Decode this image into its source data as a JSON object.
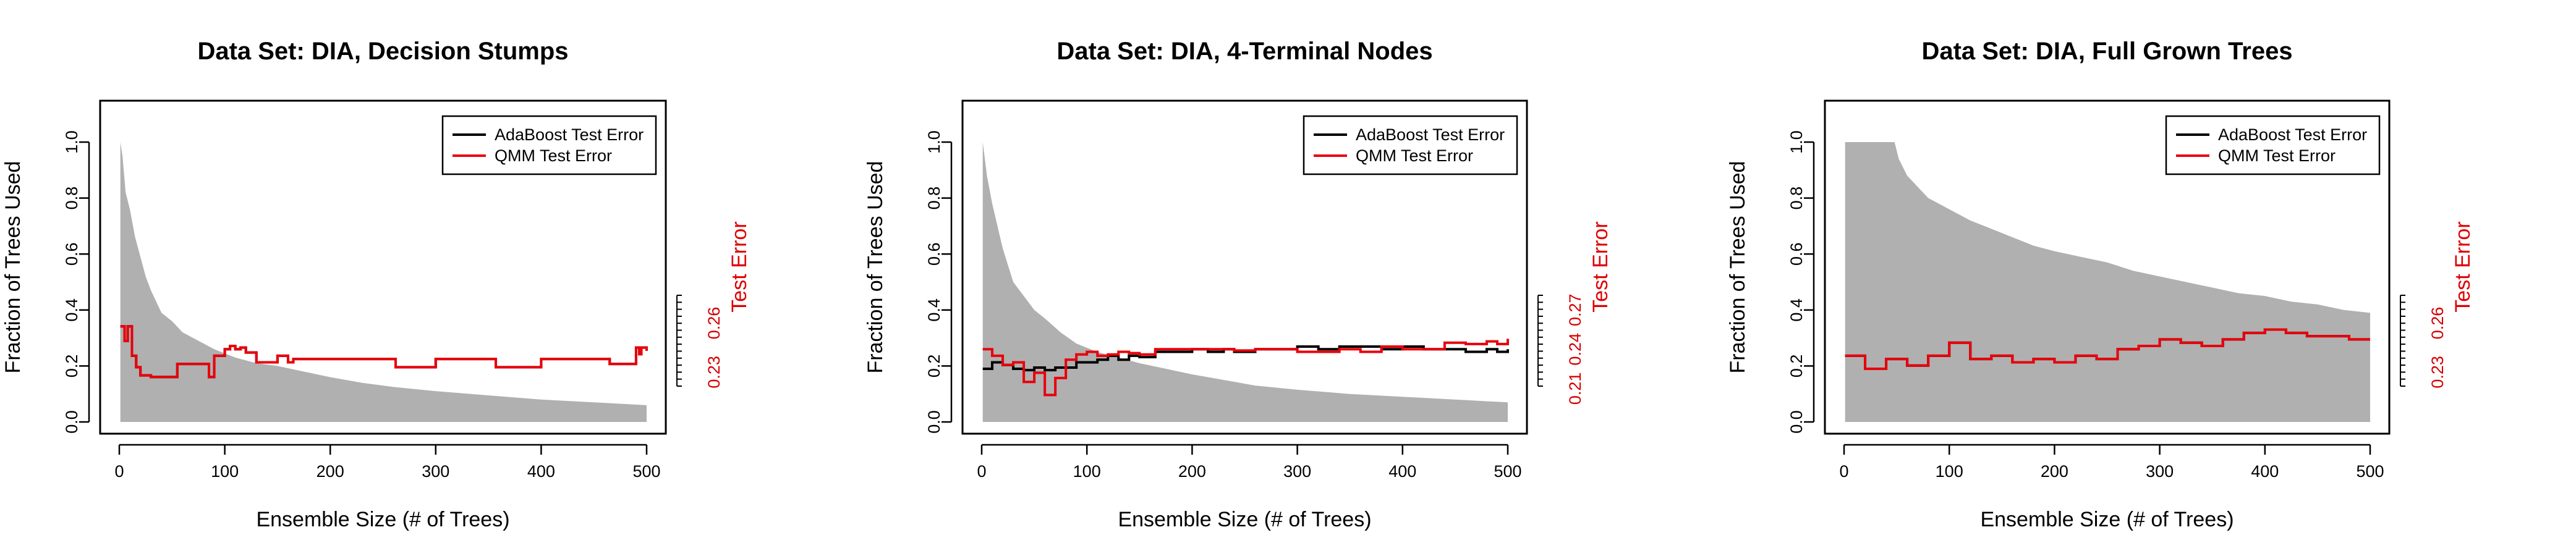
{
  "colors": {
    "background": "#ffffff",
    "fraction_fill": "#b0b0b0",
    "adaboost": "#000000",
    "qmm": "#e8000b",
    "right_axis": "#d40000"
  },
  "chart_data": [
    {
      "type": "line",
      "title": "Data Set: DIA, Decision Stumps",
      "xlabel": "Ensemble Size (# of Trees)",
      "ylabel": "Fraction of Trees Used",
      "ylabel_right": "Test Error",
      "xlim": [
        0,
        500
      ],
      "ylim": [
        0,
        1.0
      ],
      "x_ticks": [
        0,
        100,
        200,
        300,
        400,
        500
      ],
      "y_ticks": [
        0.0,
        0.2,
        0.4,
        0.6,
        0.8,
        1.0
      ],
      "y_tick_labels": [
        "0.0",
        "0.2",
        "0.4",
        "0.6",
        "0.8",
        "1.0"
      ],
      "y2lim": [
        0.212,
        0.28
      ],
      "y2_ticks": [
        0.23,
        0.26
      ],
      "y2_tick_labels": [
        "0.23",
        "0.26"
      ],
      "legend": {
        "position": "top-right",
        "entries": [
          "AdaBoost Test Error",
          "QMM Test Error"
        ]
      },
      "series": [
        {
          "name": "Fraction of Trees Used",
          "style": "filled-area",
          "x": [
            1,
            3,
            6,
            10,
            15,
            20,
            25,
            30,
            35,
            40,
            50,
            60,
            75,
            90,
            110,
            130,
            150,
            175,
            200,
            230,
            260,
            300,
            350,
            400,
            450,
            500
          ],
          "values": [
            1.0,
            0.95,
            0.82,
            0.76,
            0.66,
            0.59,
            0.52,
            0.47,
            0.43,
            0.39,
            0.36,
            0.32,
            0.29,
            0.26,
            0.23,
            0.21,
            0.2,
            0.18,
            0.16,
            0.14,
            0.125,
            0.11,
            0.095,
            0.08,
            0.07,
            0.06
          ]
        },
        {
          "name": "AdaBoost Test Error",
          "style": "line",
          "x": [
            1,
            5,
            8,
            12,
            16,
            20,
            30,
            40,
            55,
            70,
            85,
            90,
            95,
            100,
            105,
            110,
            115,
            120,
            125,
            130,
            140,
            150,
            160,
            165,
            200,
            260,
            262,
            300,
            355,
            357,
            400,
            460,
            465,
            475,
            485,
            490,
            493,
            495,
            500
          ],
          "values": [
            0.258,
            0.249,
            0.258,
            0.24,
            0.233,
            0.228,
            0.227,
            0.227,
            0.235,
            0.235,
            0.227,
            0.24,
            0.24,
            0.244,
            0.246,
            0.244,
            0.245,
            0.242,
            0.242,
            0.236,
            0.236,
            0.24,
            0.236,
            0.238,
            0.238,
            0.238,
            0.233,
            0.238,
            0.238,
            0.233,
            0.238,
            0.238,
            0.235,
            0.235,
            0.235,
            0.245,
            0.241,
            0.245,
            0.243
          ]
        },
        {
          "name": "QMM Test Error",
          "style": "line",
          "x": [
            1,
            5,
            8,
            12,
            16,
            20,
            30,
            40,
            55,
            70,
            85,
            90,
            95,
            100,
            105,
            110,
            115,
            120,
            125,
            130,
            140,
            150,
            160,
            165,
            200,
            260,
            262,
            300,
            355,
            357,
            400,
            460,
            465,
            475,
            485,
            490,
            493,
            495,
            500
          ],
          "values": [
            0.258,
            0.249,
            0.258,
            0.24,
            0.233,
            0.228,
            0.227,
            0.227,
            0.235,
            0.235,
            0.227,
            0.24,
            0.24,
            0.244,
            0.246,
            0.244,
            0.245,
            0.242,
            0.242,
            0.236,
            0.236,
            0.24,
            0.236,
            0.238,
            0.238,
            0.238,
            0.233,
            0.238,
            0.238,
            0.233,
            0.238,
            0.238,
            0.235,
            0.235,
            0.235,
            0.245,
            0.241,
            0.245,
            0.243
          ]
        }
      ]
    },
    {
      "type": "line",
      "title": "Data Set: DIA, 4-Terminal Nodes",
      "xlabel": "Ensemble Size (# of Trees)",
      "ylabel": "Fraction of Trees Used",
      "ylabel_right": "Test Error",
      "xlim": [
        0,
        500
      ],
      "ylim": [
        0,
        1.0
      ],
      "x_ticks": [
        0,
        100,
        200,
        300,
        400,
        500
      ],
      "y_ticks": [
        0.0,
        0.2,
        0.4,
        0.6,
        0.8,
        1.0
      ],
      "y_tick_labels": [
        "0.0",
        "0.2",
        "0.4",
        "0.6",
        "0.8",
        "1.0"
      ],
      "y2lim": [
        0.2,
        0.285
      ],
      "y2_ticks": [
        0.21,
        0.24,
        0.27
      ],
      "y2_tick_labels": [
        "0.21",
        "0.24",
        "0.27"
      ],
      "legend": {
        "position": "top-right",
        "entries": [
          "AdaBoost Test Error",
          "QMM Test Error"
        ]
      },
      "series": [
        {
          "name": "Fraction of Trees Used",
          "style": "filled-area",
          "x": [
            1,
            5,
            10,
            15,
            20,
            30,
            40,
            50,
            60,
            75,
            90,
            110,
            130,
            150,
            175,
            200,
            230,
            260,
            300,
            350,
            400,
            450,
            500
          ],
          "values": [
            1.0,
            0.88,
            0.78,
            0.7,
            0.62,
            0.5,
            0.45,
            0.4,
            0.37,
            0.32,
            0.28,
            0.25,
            0.23,
            0.21,
            0.19,
            0.17,
            0.15,
            0.13,
            0.115,
            0.1,
            0.09,
            0.08,
            0.07
          ]
        },
        {
          "name": "AdaBoost Test Error",
          "style": "line",
          "x": [
            1,
            10,
            20,
            30,
            40,
            50,
            60,
            70,
            80,
            90,
            100,
            110,
            120,
            130,
            140,
            150,
            165,
            180,
            200,
            215,
            230,
            240,
            260,
            280,
            300,
            320,
            340,
            360,
            380,
            400,
            420,
            440,
            460,
            480,
            490,
            500
          ],
          "values": [
            0.225,
            0.23,
            0.228,
            0.225,
            0.224,
            0.226,
            0.224,
            0.226,
            0.226,
            0.23,
            0.23,
            0.232,
            0.235,
            0.232,
            0.235,
            0.234,
            0.238,
            0.238,
            0.24,
            0.238,
            0.24,
            0.238,
            0.24,
            0.24,
            0.242,
            0.24,
            0.242,
            0.242,
            0.24,
            0.242,
            0.24,
            0.24,
            0.238,
            0.24,
            0.238,
            0.24
          ]
        },
        {
          "name": "QMM Test Error",
          "style": "line",
          "x": [
            1,
            10,
            20,
            30,
            40,
            50,
            60,
            70,
            80,
            90,
            100,
            110,
            120,
            130,
            140,
            150,
            165,
            180,
            200,
            215,
            230,
            240,
            260,
            280,
            300,
            320,
            340,
            360,
            380,
            400,
            420,
            440,
            460,
            480,
            490,
            500
          ],
          "values": [
            0.24,
            0.235,
            0.228,
            0.23,
            0.215,
            0.222,
            0.205,
            0.218,
            0.232,
            0.236,
            0.238,
            0.235,
            0.236,
            0.238,
            0.237,
            0.236,
            0.24,
            0.24,
            0.24,
            0.24,
            0.24,
            0.239,
            0.24,
            0.24,
            0.238,
            0.238,
            0.24,
            0.238,
            0.242,
            0.24,
            0.24,
            0.245,
            0.244,
            0.246,
            0.244,
            0.248
          ]
        }
      ]
    },
    {
      "type": "line",
      "title": "Data Set: DIA, Full Grown Trees",
      "xlabel": "Ensemble Size (# of Trees)",
      "ylabel": "Fraction of Trees Used",
      "ylabel_right": "Test Error",
      "xlim": [
        0,
        500
      ],
      "ylim": [
        0,
        1.0
      ],
      "x_ticks": [
        0,
        100,
        200,
        300,
        400,
        500
      ],
      "y_ticks": [
        0.0,
        0.2,
        0.4,
        0.6,
        0.8,
        1.0
      ],
      "y_tick_labels": [
        "0.0",
        "0.2",
        "0.4",
        "0.6",
        "0.8",
        "1.0"
      ],
      "y2lim": [
        0.212,
        0.28
      ],
      "y2_ticks": [
        0.23,
        0.26
      ],
      "y2_tick_labels": [
        "0.23",
        "0.26"
      ],
      "legend": {
        "position": "top-right",
        "entries": [
          "AdaBoost Test Error",
          "QMM Test Error"
        ]
      },
      "series": [
        {
          "name": "Fraction of Trees Used",
          "style": "filled-area",
          "x": [
            1,
            48,
            52,
            60,
            70,
            80,
            90,
            100,
            120,
            140,
            160,
            180,
            200,
            225,
            250,
            275,
            300,
            325,
            350,
            375,
            400,
            425,
            450,
            475,
            500
          ],
          "values": [
            1.0,
            1.0,
            0.94,
            0.88,
            0.84,
            0.8,
            0.78,
            0.76,
            0.72,
            0.69,
            0.66,
            0.63,
            0.61,
            0.59,
            0.57,
            0.54,
            0.52,
            0.5,
            0.48,
            0.46,
            0.45,
            0.43,
            0.42,
            0.4,
            0.39
          ]
        },
        {
          "name": "AdaBoost Test Error",
          "style": "line",
          "x": [
            1,
            20,
            40,
            60,
            80,
            100,
            120,
            140,
            160,
            180,
            200,
            220,
            240,
            260,
            280,
            300,
            320,
            340,
            360,
            380,
            400,
            420,
            440,
            460,
            480,
            500
          ],
          "values": [
            0.24,
            0.232,
            0.238,
            0.234,
            0.24,
            0.248,
            0.238,
            0.24,
            0.236,
            0.238,
            0.236,
            0.24,
            0.238,
            0.244,
            0.246,
            0.25,
            0.248,
            0.246,
            0.25,
            0.254,
            0.256,
            0.254,
            0.252,
            0.252,
            0.25,
            0.25
          ]
        },
        {
          "name": "QMM Test Error",
          "style": "line",
          "x": [
            1,
            20,
            40,
            60,
            80,
            100,
            120,
            140,
            160,
            180,
            200,
            220,
            240,
            260,
            280,
            300,
            320,
            340,
            360,
            380,
            400,
            420,
            440,
            460,
            480,
            500
          ],
          "values": [
            0.24,
            0.232,
            0.238,
            0.234,
            0.24,
            0.248,
            0.238,
            0.24,
            0.236,
            0.238,
            0.236,
            0.24,
            0.238,
            0.244,
            0.246,
            0.25,
            0.248,
            0.246,
            0.25,
            0.254,
            0.256,
            0.254,
            0.252,
            0.252,
            0.25,
            0.25
          ]
        }
      ]
    }
  ]
}
